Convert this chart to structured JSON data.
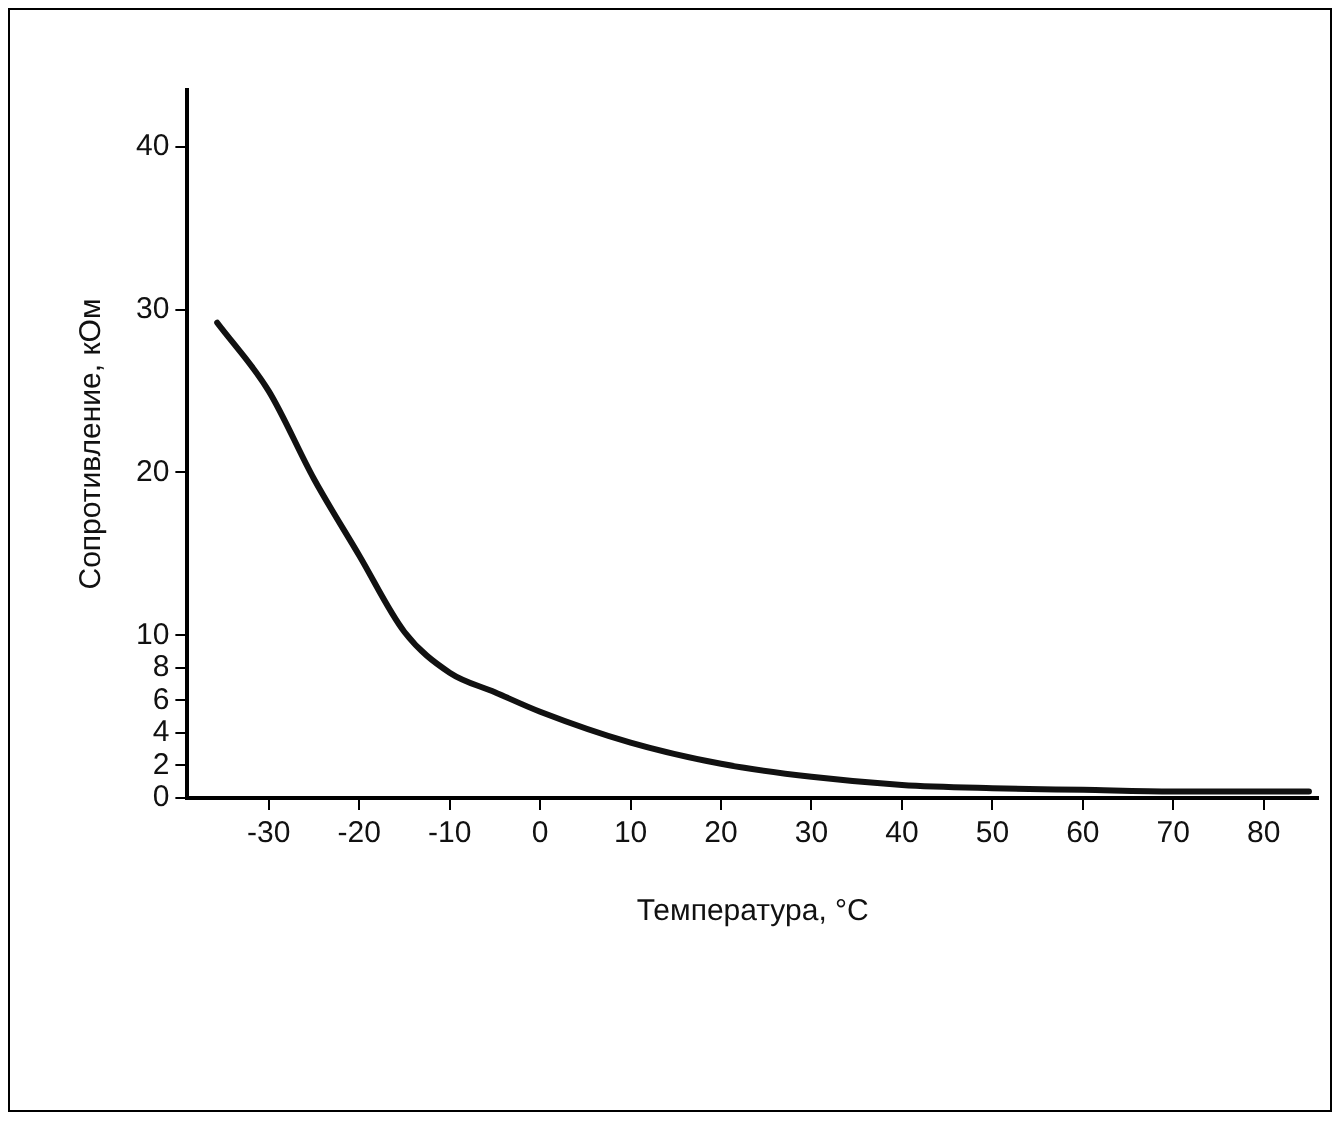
{
  "chart_data": {
    "type": "line",
    "xlabel": "Температура, °C",
    "ylabel": "Сопротивление, кОм",
    "xlim": [
      -39,
      86
    ],
    "xticks": [
      -30,
      -20,
      -10,
      0,
      10,
      20,
      30,
      40,
      50,
      60,
      70,
      80
    ],
    "ylim": [
      0,
      43.5
    ],
    "yticks": [
      0,
      2,
      4,
      6,
      8,
      10,
      20,
      30,
      40
    ],
    "grid": false,
    "legend": false,
    "marker": "none",
    "line_style": "solid",
    "series": [
      {
        "color": "#111111",
        "x": [
          -35.7,
          -30,
          -25,
          -20,
          -15,
          -10,
          -5,
          0,
          10,
          20,
          30,
          40,
          50,
          60,
          70,
          80,
          85
        ],
        "values": [
          29.2,
          25.0,
          19.6,
          14.9,
          10.2,
          7.7,
          6.5,
          5.3,
          3.4,
          2.1,
          1.3,
          0.8,
          0.6,
          0.5,
          0.4,
          0.4,
          0.4
        ]
      }
    ]
  }
}
